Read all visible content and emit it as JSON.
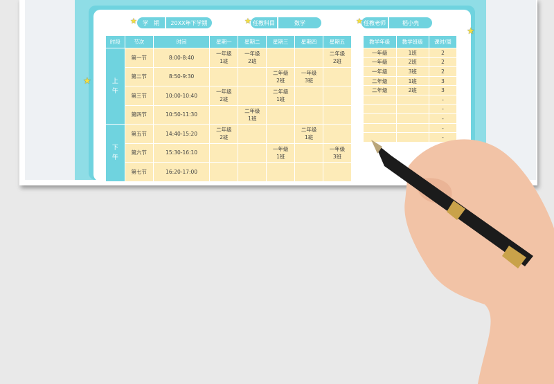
{
  "info": {
    "term_label": "学　期",
    "term_value": "20XX年下学期",
    "subject_label": "任教科目",
    "subject_value": "数学",
    "teacher_label": "任教老师",
    "teacher_value": "稻小壳"
  },
  "schedule": {
    "headers": [
      "时段",
      "节次",
      "时间",
      "星期一",
      "星期二",
      "星期三",
      "星期四",
      "星期五"
    ],
    "segments": [
      "上\n午",
      "下\n午"
    ],
    "rows": [
      {
        "period": "第一节",
        "time": "8:00-8:40",
        "cells": [
          "一年级\n1班",
          "一年级\n2班",
          "",
          "",
          "二年级\n2班"
        ]
      },
      {
        "period": "第二节",
        "time": "8:50-9:30",
        "cells": [
          "",
          "",
          "二年级\n2班",
          "一年级\n3班",
          ""
        ]
      },
      {
        "period": "第三节",
        "time": "10:00-10:40",
        "cells": [
          "一年级\n2班",
          "",
          "二年级\n1班",
          "",
          ""
        ]
      },
      {
        "period": "第四节",
        "time": "10:50-11:30",
        "cells": [
          "",
          "二年级\n1班",
          "",
          "",
          ""
        ]
      },
      {
        "period": "第五节",
        "time": "14:40-15:20",
        "cells": [
          "二年级\n2班",
          "",
          "",
          "二年级\n1班",
          ""
        ]
      },
      {
        "period": "第六节",
        "time": "15:30-16:10",
        "cells": [
          "",
          "",
          "一年级\n1班",
          "",
          "一年级\n3班"
        ]
      },
      {
        "period": "第七节",
        "time": "16:20-17:00",
        "cells": [
          "",
          "",
          "",
          "",
          ""
        ]
      }
    ]
  },
  "summary": {
    "headers": [
      "教学年级",
      "教学班级",
      "课时/周"
    ],
    "rows": [
      [
        "一年级",
        "1班",
        "2"
      ],
      [
        "一年级",
        "2班",
        "2"
      ],
      [
        "一年级",
        "3班",
        "2"
      ],
      [
        "二年级",
        "1班",
        "3"
      ],
      [
        "二年级",
        "2班",
        "3"
      ],
      [
        "",
        "",
        "-"
      ],
      [
        "",
        "",
        "-"
      ],
      [
        "",
        "",
        "-"
      ],
      [
        "",
        "",
        "-"
      ],
      [
        "",
        "",
        "-"
      ]
    ]
  },
  "colors": {
    "accent": "#6fd3df",
    "cell": "#fdebb8",
    "star": "#f5e040"
  }
}
